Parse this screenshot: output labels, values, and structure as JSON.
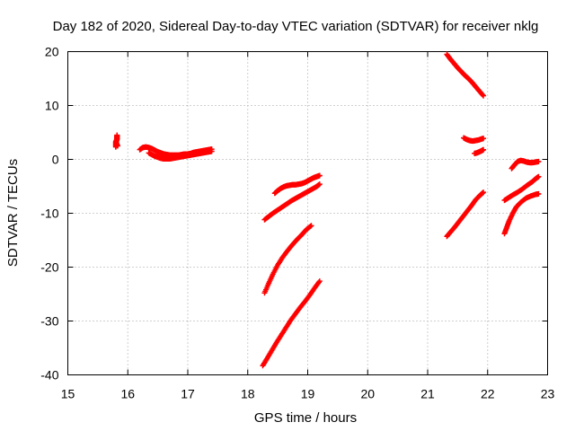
{
  "chart_data": {
    "type": "scatter",
    "title": "Day 182 of 2020, Sidereal Day-to-day VTEC variation (SDTVAR) for receiver nklg",
    "xlabel": "GPS time / hours",
    "ylabel": "SDTVAR / TECUs",
    "xlim": [
      15,
      23
    ],
    "ylim": [
      -40,
      20
    ],
    "xticks": [
      "15",
      "16",
      "17",
      "18",
      "19",
      "20",
      "21",
      "22",
      "23"
    ],
    "yticks": [
      "-40",
      "-30",
      "-20",
      "-10",
      "0",
      "10",
      "20"
    ],
    "grid": true,
    "marker": "+",
    "color": "#ff0000",
    "series": [
      {
        "x": [
          15.8,
          15.8,
          15.8,
          15.82,
          15.82,
          15.82,
          15.81,
          15.83
        ],
        "y": [
          2.3,
          2.8,
          3.3,
          3.7,
          4.1,
          4.5,
          3.0,
          2.5
        ]
      },
      {
        "x": [
          16.2,
          16.25,
          16.3,
          16.35,
          16.4,
          16.45,
          16.5,
          16.55,
          16.6,
          16.65,
          16.7,
          16.75,
          16.8,
          16.85,
          16.9,
          16.95,
          17.0,
          17.05,
          17.1,
          17.15,
          17.2,
          17.25,
          17.3,
          17.35,
          17.4
        ],
        "y": [
          1.8,
          2.2,
          2.3,
          2.2,
          2.0,
          1.7,
          1.4,
          1.2,
          1.0,
          0.9,
          0.8,
          0.8,
          0.8,
          0.8,
          0.9,
          1.0,
          1.0,
          1.1,
          1.3,
          1.4,
          1.5,
          1.6,
          1.7,
          1.8,
          1.9
        ]
      },
      {
        "x": [
          16.35,
          16.4,
          16.45,
          16.5,
          16.55,
          16.6,
          16.65,
          16.7,
          16.75,
          16.8,
          16.85,
          16.9,
          16.95,
          17.0,
          17.05,
          17.1,
          17.15,
          17.2,
          17.25,
          17.3,
          17.35,
          17.4
        ],
        "y": [
          1.2,
          0.9,
          0.6,
          0.4,
          0.2,
          0.1,
          0.1,
          0.1,
          0.2,
          0.3,
          0.4,
          0.5,
          0.6,
          0.7,
          0.8,
          0.9,
          1.0,
          1.1,
          1.2,
          1.3,
          1.4,
          1.5
        ]
      },
      {
        "x": [
          18.45,
          18.5,
          18.55,
          18.6,
          18.65,
          18.7,
          18.75,
          18.8,
          18.85,
          18.9,
          18.95,
          19.0,
          19.05,
          19.1,
          19.15,
          19.2
        ],
        "y": [
          -6.3,
          -5.8,
          -5.4,
          -5.1,
          -4.9,
          -4.8,
          -4.7,
          -4.7,
          -4.6,
          -4.5,
          -4.3,
          -4.0,
          -3.7,
          -3.4,
          -3.2,
          -3.0
        ]
      },
      {
        "x": [
          18.28,
          18.35,
          18.42,
          18.5,
          18.58,
          18.66,
          18.74,
          18.82,
          18.9,
          18.98,
          19.06,
          19.14,
          19.2
        ],
        "y": [
          -11.2,
          -10.6,
          -10.0,
          -9.4,
          -8.8,
          -8.2,
          -7.6,
          -7.1,
          -6.6,
          -6.1,
          -5.6,
          -5.1,
          -4.6
        ]
      },
      {
        "x": [
          18.28,
          18.35,
          18.42,
          18.5,
          18.58,
          18.66,
          18.74,
          18.82,
          18.9,
          18.98,
          19.06
        ],
        "y": [
          -24.8,
          -23.0,
          -21.3,
          -19.6,
          -18.2,
          -17.0,
          -15.9,
          -14.9,
          -14.0,
          -13.0,
          -12.3
        ]
      },
      {
        "x": [
          18.25,
          18.32,
          18.4,
          18.48,
          18.56,
          18.64,
          18.72,
          18.8,
          18.88,
          18.96,
          19.04,
          19.12,
          19.2
        ],
        "y": [
          -38.3,
          -37.0,
          -35.5,
          -34.0,
          -32.6,
          -31.2,
          -29.8,
          -28.6,
          -27.4,
          -26.3,
          -25.1,
          -23.8,
          -22.6
        ]
      },
      {
        "x": [
          21.32,
          21.38,
          21.44,
          21.5,
          21.56,
          21.62,
          21.68,
          21.74,
          21.8,
          21.86,
          21.93
        ],
        "y": [
          19.5,
          18.6,
          17.8,
          17.0,
          16.3,
          15.6,
          15.0,
          14.3,
          13.5,
          12.7,
          11.8
        ]
      },
      {
        "x": [
          21.6,
          21.65,
          21.7,
          21.75,
          21.8,
          21.85,
          21.9,
          21.93
        ],
        "y": [
          4.0,
          3.7,
          3.5,
          3.4,
          3.5,
          3.6,
          3.8,
          3.9
        ]
      },
      {
        "x": [
          21.78,
          21.82,
          21.86,
          21.9,
          21.93
        ],
        "y": [
          1.1,
          1.2,
          1.4,
          1.6,
          1.8
        ]
      },
      {
        "x": [
          21.32,
          21.38,
          21.45,
          21.52,
          21.59,
          21.66,
          21.73,
          21.8,
          21.87,
          21.93
        ],
        "y": [
          -14.3,
          -13.5,
          -12.6,
          -11.6,
          -10.6,
          -9.6,
          -8.6,
          -7.5,
          -6.7,
          -6.1
        ]
      },
      {
        "x": [
          22.4,
          22.45,
          22.5,
          22.55,
          22.6,
          22.65,
          22.7,
          22.75,
          22.8,
          22.85
        ],
        "y": [
          -1.7,
          -1.0,
          -0.4,
          -0.2,
          -0.3,
          -0.5,
          -0.6,
          -0.6,
          -0.5,
          -0.4
        ]
      },
      {
        "x": [
          22.28,
          22.35,
          22.42,
          22.5,
          22.58,
          22.66,
          22.74,
          22.8,
          22.85
        ],
        "y": [
          -7.6,
          -7.1,
          -6.6,
          -6.1,
          -5.5,
          -4.8,
          -4.2,
          -3.6,
          -3.2
        ]
      },
      {
        "x": [
          22.28,
          22.32,
          22.36,
          22.42,
          22.48,
          22.56,
          22.64,
          22.72,
          22.8,
          22.85
        ],
        "y": [
          -13.8,
          -12.6,
          -11.4,
          -10.0,
          -8.8,
          -7.9,
          -7.2,
          -6.8,
          -6.5,
          -6.4
        ]
      }
    ]
  }
}
